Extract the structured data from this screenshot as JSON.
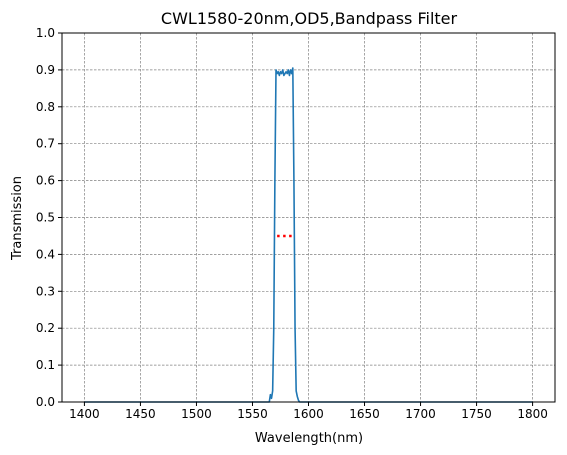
{
  "chart_data": {
    "type": "line",
    "title": "CWL1580-20nm,OD5,Bandpass Filter",
    "xlabel": "Wavelength(nm)",
    "ylabel": "Transmission",
    "xlim": [
      1380,
      1820
    ],
    "ylim": [
      0.0,
      1.0
    ],
    "xticks": [
      1400,
      1450,
      1500,
      1550,
      1600,
      1650,
      1700,
      1750,
      1800
    ],
    "yticks": [
      0.0,
      0.1,
      0.2,
      0.3,
      0.4,
      0.5,
      0.6,
      0.7,
      0.8,
      0.9,
      1.0
    ],
    "xtick_labels": [
      "1400",
      "1450",
      "1500",
      "1550",
      "1600",
      "1650",
      "1700",
      "1750",
      "1800"
    ],
    "ytick_labels": [
      "0.0",
      "0.1",
      "0.2",
      "0.3",
      "0.4",
      "0.5",
      "0.6",
      "0.7",
      "0.8",
      "0.9",
      "1.0"
    ],
    "grid": true,
    "series": [
      {
        "color": "#1f77b4",
        "style": "solid",
        "x": [
          1400,
          1565,
          1566,
          1567,
          1568,
          1569,
          1570,
          1571,
          1572,
          1573,
          1574,
          1575,
          1576,
          1577,
          1578,
          1579,
          1580,
          1581,
          1582,
          1583,
          1584,
          1585,
          1586,
          1587,
          1588,
          1589,
          1590,
          1591,
          1592,
          1593,
          1800
        ],
        "y": [
          0.0,
          0.0,
          0.02,
          0.01,
          0.03,
          0.2,
          0.6,
          0.9,
          0.89,
          0.895,
          0.885,
          0.895,
          0.89,
          0.9,
          0.885,
          0.89,
          0.895,
          0.89,
          0.9,
          0.885,
          0.9,
          0.89,
          0.905,
          0.6,
          0.2,
          0.03,
          0.015,
          0.005,
          0.0,
          0.0,
          0.0
        ]
      },
      {
        "color": "#ff0000",
        "style": "dotted",
        "x": [
          1572,
          1588
        ],
        "y": [
          0.45,
          0.45
        ]
      }
    ]
  }
}
